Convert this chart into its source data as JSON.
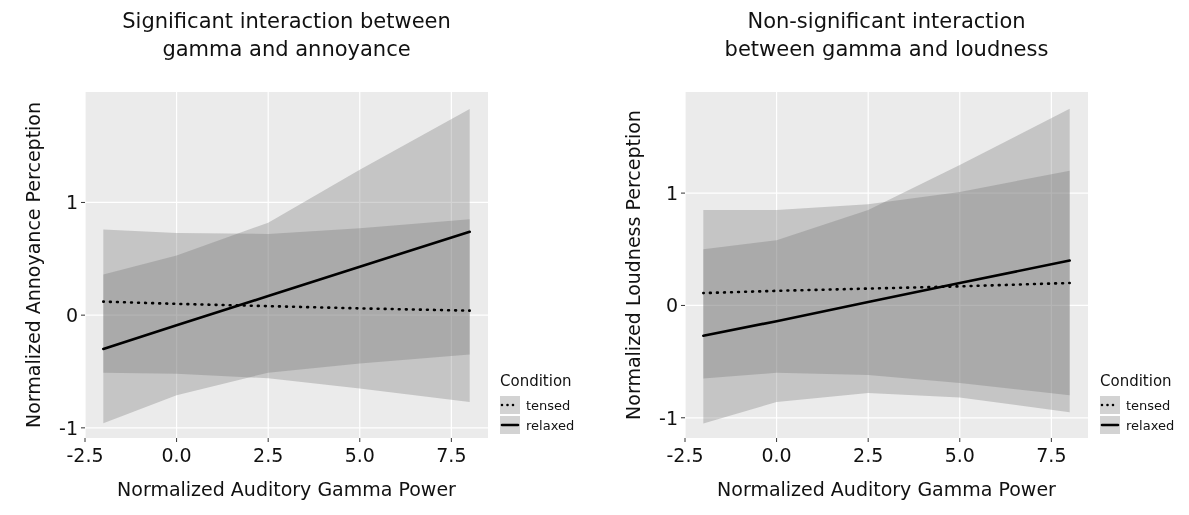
{
  "chart_data": [
    {
      "type": "line",
      "title": "Significant interaction between gamma and annoyance",
      "xlabel": "Normalized Auditory Gamma Power",
      "ylabel": "Normalized Annoyance Perception",
      "legend_title": "Condition",
      "legend": "bottom right",
      "grid": true,
      "x": [
        -2,
        0,
        2.5,
        5,
        8
      ],
      "xlim": [
        -2.5,
        8.5
      ],
      "xticks": [
        {
          "value": -2.5,
          "label": "-2.5"
        },
        {
          "value": 0,
          "label": "0.0"
        },
        {
          "value": 2.5,
          "label": "2.5"
        },
        {
          "value": 5,
          "label": "5.0"
        },
        {
          "value": 7.5,
          "label": "7.5"
        }
      ],
      "ylim": [
        -1.09,
        1.98
      ],
      "yticks": [
        -1,
        0,
        1
      ],
      "series": [
        {
          "name": "tensed",
          "color": "#000000",
          "line_style": "dotted",
          "values": [
            0.12,
            0.1,
            0.08,
            0.06,
            0.04
          ],
          "lower": [
            -0.51,
            -0.52,
            -0.56,
            -0.65,
            -0.77
          ],
          "upper": [
            0.76,
            0.73,
            0.72,
            0.77,
            0.85
          ]
        },
        {
          "name": "relaxed",
          "color": "#000000",
          "line_style": "solid",
          "values": [
            -0.3,
            -0.09,
            0.17,
            0.43,
            0.74
          ],
          "lower": [
            -0.96,
            -0.71,
            -0.51,
            -0.43,
            -0.35
          ],
          "upper": [
            0.36,
            0.53,
            0.82,
            1.29,
            1.83
          ]
        }
      ]
    },
    {
      "type": "line",
      "title": "Non-significant interaction between gamma and loudness",
      "xlabel": "Normalized Auditory Gamma Power",
      "ylabel": "Normalized Loudness Perception",
      "legend_title": "Condition",
      "legend": "bottom right",
      "grid": true,
      "x": [
        -2,
        0,
        2.5,
        5,
        8
      ],
      "xlim": [
        -2.5,
        8.5
      ],
      "xticks": [
        {
          "value": -2.5,
          "label": "-2.5"
        },
        {
          "value": 0,
          "label": "0.0"
        },
        {
          "value": 2.5,
          "label": "2.5"
        },
        {
          "value": 5,
          "label": "5.0"
        },
        {
          "value": 7.5,
          "label": "7.5"
        }
      ],
      "ylim": [
        -1.18,
        1.9
      ],
      "yticks": [
        -1,
        0,
        1
      ],
      "series": [
        {
          "name": "tensed",
          "color": "#000000",
          "line_style": "dotted",
          "values": [
            0.11,
            0.13,
            0.15,
            0.17,
            0.2
          ],
          "lower": [
            -0.65,
            -0.6,
            -0.62,
            -0.69,
            -0.8
          ],
          "upper": [
            0.85,
            0.85,
            0.9,
            1.01,
            1.2
          ]
        },
        {
          "name": "relaxed",
          "color": "#000000",
          "line_style": "solid",
          "values": [
            -0.27,
            -0.14,
            0.03,
            0.2,
            0.4
          ],
          "lower": [
            -1.05,
            -0.86,
            -0.78,
            -0.82,
            -0.95
          ],
          "upper": [
            0.5,
            0.58,
            0.85,
            1.25,
            1.75
          ]
        }
      ]
    }
  ]
}
